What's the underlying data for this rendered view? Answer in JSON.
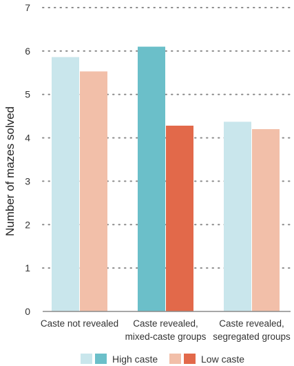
{
  "chart_data": {
    "type": "bar",
    "ylabel": "Number of mazes solved",
    "xlabel": "",
    "ylim": [
      0,
      7
    ],
    "yticks": [
      0,
      1,
      2,
      3,
      4,
      5,
      6,
      7
    ],
    "grid": true,
    "legend_position": "bottom",
    "categories": [
      [
        "Caste not revealed"
      ],
      [
        "Caste revealed,",
        "mixed-caste groups"
      ],
      [
        "Caste revealed,",
        "segregated groups"
      ]
    ],
    "series": [
      {
        "name": "High caste",
        "values": [
          5.86,
          6.1,
          4.37
        ],
        "colors": [
          "#c9e6ec",
          "#6bbfc9",
          "#c9e6ec"
        ],
        "legend_swatches": [
          "#c9e6ec",
          "#6bbfc9"
        ]
      },
      {
        "name": "Low caste",
        "values": [
          5.53,
          4.28,
          4.2
        ],
        "colors": [
          "#f2bfa9",
          "#e2694a",
          "#f2bfa9"
        ],
        "legend_swatches": [
          "#f2bfa9",
          "#e2694a"
        ]
      }
    ]
  }
}
